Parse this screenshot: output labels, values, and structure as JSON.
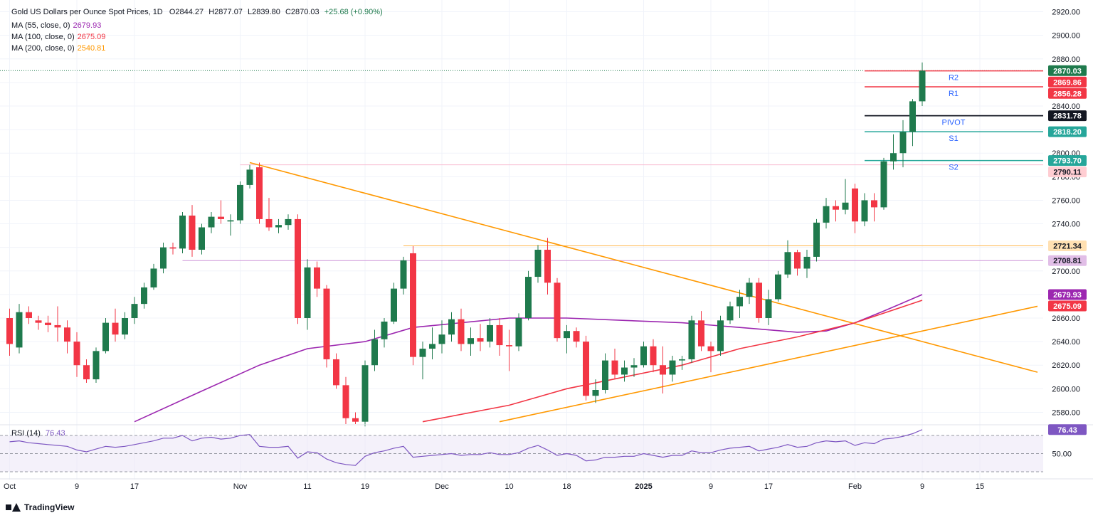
{
  "header": {
    "symbol": "Gold US Dollars per Ounce Spot Prices, 1D",
    "ohlc": {
      "o": "O2844.27",
      "h": "H2877.07",
      "l": "L2839.80",
      "c": "C2870.03",
      "chg": "+25.68 (+0.90%)"
    }
  },
  "legend": [
    {
      "label": "MA (55, close, 0)",
      "value": "2679.93",
      "color": "#9c27b0"
    },
    {
      "label": "MA (100, close, 0)",
      "value": "2675.09",
      "color": "#f23645"
    },
    {
      "label": "MA (200, close, 0)",
      "value": "2540.81",
      "color": "#ff9800"
    }
  ],
  "rsi_legend": {
    "label": "RSI (14)",
    "value": "76.43",
    "color": "#7e57c2"
  },
  "footer": {
    "brand": "TradingView"
  },
  "colors": {
    "up": "#26a69a",
    "up_body": "#1f7a4d",
    "down": "#f23645",
    "ma55": "#9c27b0",
    "ma100": "#f23645",
    "trend": "#ff9800",
    "rsi": "#7e57c2"
  },
  "chart_data": {
    "type": "candlestick",
    "title": "Gold US Dollars per Ounce Spot Prices, 1D",
    "y_ticks": [
      2580,
      2600,
      2620,
      2640,
      2660,
      2680,
      2700,
      2720,
      2740,
      2760,
      2780,
      2800,
      2820,
      2840,
      2860,
      2880,
      2900,
      2920
    ],
    "ylim": [
      2570,
      2930
    ],
    "x_ticks": [
      "Oct",
      "9",
      "17",
      "Nov",
      "11",
      "19",
      "Dec",
      "10",
      "18",
      "2025",
      "9",
      "17",
      "Feb",
      "9",
      "15"
    ],
    "x_tick_index": [
      0,
      7,
      13,
      24,
      31,
      37,
      45,
      52,
      58,
      66,
      73,
      79,
      88,
      95,
      101
    ],
    "candles": [
      [
        2660,
        2668,
        2628,
        2638
      ],
      [
        2635,
        2672,
        2630,
        2665
      ],
      [
        2665,
        2670,
        2655,
        2660
      ],
      [
        2658,
        2662,
        2650,
        2656
      ],
      [
        2656,
        2662,
        2648,
        2654
      ],
      [
        2654,
        2670,
        2640,
        2652
      ],
      [
        2652,
        2658,
        2630,
        2640
      ],
      [
        2640,
        2648,
        2610,
        2620
      ],
      [
        2620,
        2625,
        2605,
        2608
      ],
      [
        2608,
        2635,
        2605,
        2632
      ],
      [
        2632,
        2660,
        2630,
        2656
      ],
      [
        2656,
        2668,
        2640,
        2646
      ],
      [
        2646,
        2665,
        2642,
        2660
      ],
      [
        2660,
        2678,
        2655,
        2672
      ],
      [
        2672,
        2690,
        2668,
        2686
      ],
      [
        2686,
        2706,
        2684,
        2702
      ],
      [
        2702,
        2724,
        2698,
        2720
      ],
      [
        2720,
        2724,
        2714,
        2719
      ],
      [
        2719,
        2750,
        2715,
        2747
      ],
      [
        2747,
        2756,
        2712,
        2718
      ],
      [
        2718,
        2740,
        2714,
        2737
      ],
      [
        2737,
        2750,
        2732,
        2746
      ],
      [
        2746,
        2760,
        2740,
        2744
      ],
      [
        2742,
        2748,
        2730,
        2743
      ],
      [
        2743,
        2776,
        2740,
        2773
      ],
      [
        2773,
        2790,
        2770,
        2786
      ],
      [
        2788,
        2792,
        2740,
        2744
      ],
      [
        2744,
        2762,
        2734,
        2737
      ],
      [
        2737,
        2744,
        2732,
        2739
      ],
      [
        2739,
        2748,
        2735,
        2744
      ],
      [
        2744,
        2748,
        2655,
        2660
      ],
      [
        2660,
        2710,
        2650,
        2703
      ],
      [
        2703,
        2708,
        2678,
        2685
      ],
      [
        2685,
        2688,
        2618,
        2625
      ],
      [
        2625,
        2630,
        2600,
        2603
      ],
      [
        2603,
        2610,
        2570,
        2575
      ],
      [
        2575,
        2580,
        2570,
        2572
      ],
      [
        2572,
        2624,
        2568,
        2620
      ],
      [
        2620,
        2650,
        2615,
        2642
      ],
      [
        2642,
        2660,
        2635,
        2657
      ],
      [
        2657,
        2690,
        2655,
        2685
      ],
      [
        2685,
        2712,
        2680,
        2709
      ],
      [
        2715,
        2721,
        2620,
        2627
      ],
      [
        2627,
        2640,
        2608,
        2634
      ],
      [
        2634,
        2652,
        2625,
        2638
      ],
      [
        2638,
        2658,
        2630,
        2646
      ],
      [
        2646,
        2665,
        2640,
        2659
      ],
      [
        2659,
        2668,
        2632,
        2638
      ],
      [
        2638,
        2652,
        2628,
        2643
      ],
      [
        2643,
        2655,
        2632,
        2640
      ],
      [
        2640,
        2660,
        2635,
        2654
      ],
      [
        2654,
        2660,
        2628,
        2637
      ],
      [
        2637,
        2650,
        2615,
        2636
      ],
      [
        2636,
        2664,
        2632,
        2660
      ],
      [
        2660,
        2700,
        2658,
        2695
      ],
      [
        2695,
        2722,
        2690,
        2718
      ],
      [
        2718,
        2728,
        2680,
        2690
      ],
      [
        2690,
        2694,
        2640,
        2643
      ],
      [
        2643,
        2654,
        2630,
        2649
      ],
      [
        2649,
        2652,
        2635,
        2640
      ],
      [
        2640,
        2645,
        2590,
        2594
      ],
      [
        2594,
        2608,
        2588,
        2599
      ],
      [
        2599,
        2630,
        2596,
        2624
      ],
      [
        2624,
        2634,
        2608,
        2612
      ],
      [
        2612,
        2624,
        2606,
        2618
      ],
      [
        2618,
        2626,
        2610,
        2620
      ],
      [
        2620,
        2640,
        2618,
        2636
      ],
      [
        2636,
        2642,
        2614,
        2620
      ],
      [
        2620,
        2636,
        2596,
        2612
      ],
      [
        2612,
        2628,
        2606,
        2624
      ],
      [
        2624,
        2628,
        2616,
        2625
      ],
      [
        2625,
        2662,
        2622,
        2658
      ],
      [
        2658,
        2666,
        2632,
        2636
      ],
      [
        2636,
        2640,
        2614,
        2632
      ],
      [
        2632,
        2662,
        2628,
        2658
      ],
      [
        2658,
        2674,
        2655,
        2670
      ],
      [
        2670,
        2684,
        2660,
        2678
      ],
      [
        2678,
        2694,
        2672,
        2690
      ],
      [
        2690,
        2694,
        2656,
        2660
      ],
      [
        2660,
        2684,
        2654,
        2676
      ],
      [
        2676,
        2700,
        2674,
        2697
      ],
      [
        2697,
        2726,
        2694,
        2716
      ],
      [
        2716,
        2718,
        2696,
        2702
      ],
      [
        2702,
        2718,
        2694,
        2712
      ],
      [
        2712,
        2744,
        2708,
        2741
      ],
      [
        2741,
        2762,
        2736,
        2755
      ],
      [
        2755,
        2760,
        2742,
        2752
      ],
      [
        2752,
        2778,
        2748,
        2758
      ],
      [
        2770,
        2774,
        2732,
        2742
      ],
      [
        2742,
        2766,
        2738,
        2760
      ],
      [
        2760,
        2766,
        2742,
        2754
      ],
      [
        2754,
        2796,
        2752,
        2793
      ],
      [
        2793,
        2816,
        2786,
        2800
      ],
      [
        2800,
        2828,
        2788,
        2818
      ],
      [
        2818,
        2846,
        2806,
        2844
      ],
      [
        2844,
        2877,
        2840,
        2870
      ]
    ],
    "ma55": [
      [
        13,
        2572
      ],
      [
        20,
        2598
      ],
      [
        26,
        2620
      ],
      [
        31,
        2634
      ],
      [
        37,
        2640
      ],
      [
        42,
        2652
      ],
      [
        47,
        2656
      ],
      [
        52,
        2660
      ],
      [
        58,
        2660
      ],
      [
        64,
        2658
      ],
      [
        70,
        2656
      ],
      [
        76,
        2652
      ],
      [
        82,
        2648
      ],
      [
        85,
        2649
      ],
      [
        88,
        2656
      ],
      [
        91,
        2666
      ],
      [
        95,
        2679.93
      ]
    ],
    "ma100": [
      [
        43,
        2572
      ],
      [
        52,
        2586
      ],
      [
        58,
        2600
      ],
      [
        64,
        2610
      ],
      [
        70,
        2620
      ],
      [
        76,
        2634
      ],
      [
        82,
        2644
      ],
      [
        88,
        2656
      ],
      [
        95,
        2675.09
      ]
    ],
    "horizontal_levels": [
      {
        "price": 2870.03,
        "label": "2870.03",
        "bg": "#1f7a4d",
        "line": "dotted"
      },
      {
        "price": 2869.86,
        "label": "2869.86",
        "bg": "#f23645",
        "name": "R2"
      },
      {
        "price": 2856.28,
        "label": "2856.28",
        "bg": "#f23645",
        "name": "R1"
      },
      {
        "price": 2831.78,
        "label": "2831.78",
        "bg": "#131722",
        "name": "PIVOT"
      },
      {
        "price": 2818.2,
        "label": "2818.20",
        "bg": "#26a69a",
        "name": "S1"
      },
      {
        "price": 2793.7,
        "label": "2793.70",
        "bg": "#26a69a",
        "name": "S2"
      },
      {
        "price": 2790.11,
        "label": "2790.11",
        "bg": "#ffcdd2",
        "fg": "#131722"
      },
      {
        "price": 2721.34,
        "label": "2721.34",
        "bg": "#ffe0b2",
        "fg": "#131722"
      },
      {
        "price": 2708.81,
        "label": "2708.81",
        "bg": "#e1bee7",
        "fg": "#131722"
      },
      {
        "price": 2679.93,
        "label": "2679.93",
        "bg": "#9c27b0"
      },
      {
        "price": 2675.09,
        "label": "2675.09",
        "bg": "#f23645"
      }
    ],
    "trendlines": [
      {
        "from": [
          25,
          2792
        ],
        "to": [
          107,
          2614
        ]
      },
      {
        "from": [
          51,
          2572
        ],
        "to": [
          107,
          2670
        ]
      }
    ],
    "rsi": {
      "levels": [
        70,
        50,
        30
      ],
      "value": 76.43,
      "y_ticks": [
        50
      ],
      "values": [
        63,
        64,
        62,
        61,
        60,
        59,
        58,
        54,
        52,
        55,
        58,
        57,
        58,
        60,
        62,
        64,
        67,
        67,
        70,
        64,
        67,
        68,
        66,
        67,
        70,
        71,
        58,
        57,
        57,
        58,
        45,
        52,
        51,
        44,
        40,
        38,
        37,
        47,
        51,
        53,
        56,
        58,
        46,
        47,
        48,
        49,
        50,
        48,
        49,
        49,
        51,
        49,
        49,
        51,
        56,
        59,
        54,
        48,
        50,
        48,
        42,
        43,
        46,
        46,
        47,
        47,
        50,
        48,
        46,
        48,
        48,
        53,
        51,
        51,
        54,
        56,
        57,
        58,
        53,
        55,
        57,
        60,
        57,
        58,
        62,
        64,
        63,
        64,
        59,
        62,
        61,
        66,
        67,
        69,
        72,
        76.43
      ]
    }
  }
}
